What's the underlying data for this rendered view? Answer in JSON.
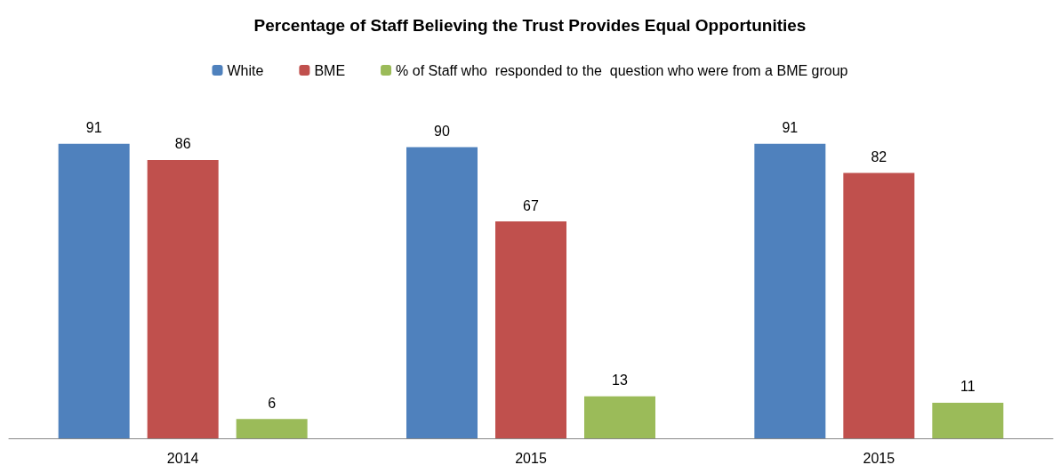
{
  "chart_data": {
    "type": "bar",
    "title": "Percentage of Staff Believing the Trust Provides Equal Opportunities",
    "categories": [
      "2014",
      "2015",
      "2015"
    ],
    "series": [
      {
        "name": "White",
        "color": "#4f81bd",
        "values": [
          91,
          90,
          91
        ]
      },
      {
        "name": "BME",
        "color": "#c0504d",
        "values": [
          86,
          67,
          82
        ]
      },
      {
        "name": "% of Staff who  responded to the  question who were from a BME group",
        "color": "#9bbb59",
        "values": [
          6,
          13,
          11
        ]
      }
    ],
    "data_labels": true,
    "legend": "top"
  }
}
